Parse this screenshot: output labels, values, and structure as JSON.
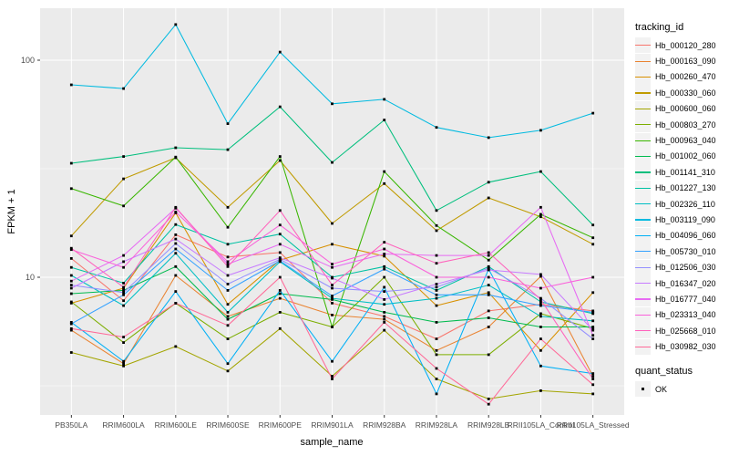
{
  "chart": {
    "xlabel": "sample_name",
    "ylabel": "FPKM + 1",
    "panel_color": "#EBEBEB",
    "grid_color": "#FFFFFF",
    "point_color": "#000000",
    "y_scale": "log10",
    "y_ticks": [
      100,
      10
    ],
    "y_minor": [
      31.623,
      3.1623
    ],
    "chart_data": {
      "type": "line",
      "title": "",
      "xlabel": "sample_name",
      "ylabel": "FPKM + 1",
      "y_scale": "log10",
      "ylim": [
        2.3,
        170
      ],
      "grid": true,
      "legend_position": "right",
      "categories": [
        "PB350LA",
        "RRIM600LA",
        "RRIM600LE",
        "RRIM600SE",
        "RRIM600PE",
        "RRIM901LA",
        "RRIM928BA",
        "RRIM928LA",
        "RRIM928LB",
        "RRII105LA_Control",
        "RRII105LA_Stressed"
      ],
      "series": [
        {
          "name": "Hb_000120_280",
          "color": "#F8766D",
          "values": [
            12.2,
            7.8,
            15.7,
            12.4,
            13.0,
            7.6,
            6.6,
            5.2,
            7.0,
            7.5,
            7.0
          ]
        },
        {
          "name": "Hb_000163_090",
          "color": "#EA8331",
          "values": [
            5.7,
            4.0,
            10.2,
            6.6,
            8.0,
            6.7,
            6.4,
            4.6,
            5.9,
            10.1,
            3.5
          ]
        },
        {
          "name": "Hb_000260_470",
          "color": "#D89000",
          "values": [
            7.6,
            8.9,
            19.8,
            7.5,
            12.0,
            14.2,
            12.5,
            7.4,
            8.5,
            4.6,
            8.5
          ]
        },
        {
          "name": "Hb_000330_060",
          "color": "#C09B00",
          "values": [
            15.5,
            28.4,
            35.5,
            21.0,
            34.5,
            17.7,
            27.0,
            16.4,
            23.2,
            19.0,
            14.2
          ]
        },
        {
          "name": "Hb_000600_060",
          "color": "#A3A500",
          "values": [
            4.5,
            3.9,
            4.8,
            3.7,
            5.8,
            3.5,
            5.7,
            3.4,
            2.75,
            3.0,
            2.9
          ]
        },
        {
          "name": "Hb_000803_270",
          "color": "#7CAE00",
          "values": [
            7.7,
            5.0,
            7.6,
            5.2,
            6.9,
            5.9,
            10.0,
            4.4,
            4.4,
            6.8,
            5.8
          ]
        },
        {
          "name": "Hb_000963_040",
          "color": "#39B600",
          "values": [
            25.6,
            21.3,
            35.8,
            17.0,
            36.0,
            5.9,
            30.7,
            17.3,
            12.0,
            19.5,
            15.2
          ]
        },
        {
          "name": "Hb_001002_060",
          "color": "#00BB4E",
          "values": [
            8.4,
            8.7,
            11.2,
            6.4,
            8.4,
            7.9,
            6.9,
            6.2,
            6.5,
            5.9,
            5.9
          ]
        },
        {
          "name": "Hb_001141_310",
          "color": "#00BF7D",
          "values": [
            33.5,
            36.0,
            39.5,
            38.7,
            61.0,
            33.8,
            53.0,
            20.3,
            27.4,
            30.7,
            17.4
          ]
        },
        {
          "name": "Hb_001227_130",
          "color": "#00C1A3",
          "values": [
            11.1,
            9.4,
            17.5,
            14.2,
            15.8,
            10.0,
            11.2,
            8.7,
            11.2,
            7.7,
            6.8
          ]
        },
        {
          "name": "Hb_002326_110",
          "color": "#00BFC4",
          "values": [
            10.2,
            7.4,
            12.9,
            6.9,
            11.8,
            8.0,
            7.5,
            8.0,
            9.2,
            6.6,
            6.3
          ]
        },
        {
          "name": "Hb_003119_090",
          "color": "#00BAE0",
          "values": [
            77,
            74,
            146,
            51,
            109,
            63,
            66,
            49,
            44,
            47.5,
            57
          ]
        },
        {
          "name": "Hb_004096_060",
          "color": "#00B0F6",
          "values": [
            6.2,
            4.1,
            8.6,
            4.0,
            8.7,
            4.1,
            9.0,
            2.9,
            10.9,
            3.9,
            3.6
          ]
        },
        {
          "name": "Hb_005730_010",
          "color": "#35A2FF",
          "values": [
            6.1,
            8.3,
            13.5,
            8.7,
            11.9,
            8.2,
            10.9,
            8.3,
            8.3,
            7.4,
            6.9
          ]
        },
        {
          "name": "Hb_012506_030",
          "color": "#9590FF",
          "values": [
            9.2,
            8.5,
            14.3,
            9.3,
            12.1,
            8.9,
            8.6,
            9.0,
            11.0,
            8.0,
            5.2
          ]
        },
        {
          "name": "Hb_016347_020",
          "color": "#C77CFF",
          "values": [
            8.9,
            11.8,
            15.0,
            10.2,
            12.3,
            9.9,
            7.9,
            9.3,
            10.8,
            10.3,
            5.7
          ]
        },
        {
          "name": "Hb_016777_040",
          "color": "#E76BF3",
          "values": [
            9.6,
            12.6,
            20.8,
            11.5,
            14.2,
            11.1,
            12.8,
            12.6,
            12.6,
            21.0,
            5.4
          ]
        },
        {
          "name": "Hb_023313_040",
          "color": "#FA62DB",
          "values": [
            13.4,
            11.1,
            20.0,
            11.8,
            17.4,
            11.5,
            13.5,
            10.0,
            10.0,
            8.9,
            10.0
          ]
        },
        {
          "name": "Hb_025668_010",
          "color": "#FF62BC",
          "values": [
            13.6,
            9.0,
            21.0,
            11.2,
            20.3,
            9.2,
            14.5,
            11.6,
            13.0,
            7.9,
            3.4
          ]
        },
        {
          "name": "Hb_030982_030",
          "color": "#FF6A98",
          "values": [
            5.8,
            5.3,
            7.6,
            6.0,
            10.0,
            3.4,
            6.2,
            3.8,
            2.6,
            5.2,
            3.2
          ]
        }
      ]
    }
  },
  "legend": {
    "title": "tracking_id"
  },
  "legend2": {
    "title": "quant_status",
    "items": [
      {
        "label": "OK"
      }
    ]
  }
}
